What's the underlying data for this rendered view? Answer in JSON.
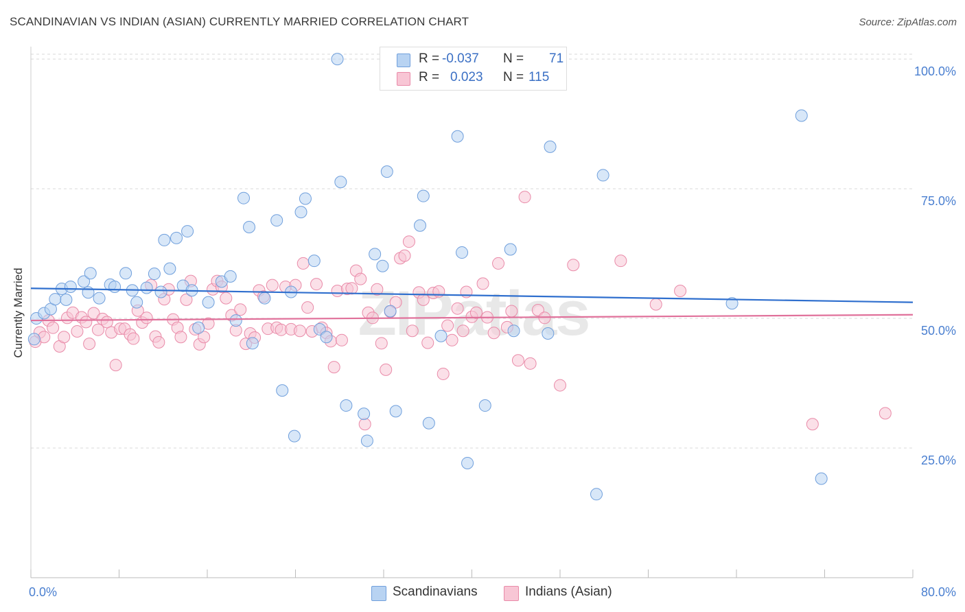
{
  "title": "SCANDINAVIAN VS INDIAN (ASIAN) CURRENTLY MARRIED CORRELATION CHART",
  "source": "Source: ZipAtlas.com",
  "watermark": "ZIPatlas",
  "colors": {
    "blue_fill": "#b8d3f2",
    "blue_stroke": "#6f9fdc",
    "blue_line": "#2f6fce",
    "pink_fill": "#f8c6d5",
    "pink_stroke": "#e98aa8",
    "pink_line": "#e0709a",
    "grid": "#d9d9d9",
    "axis_text": "#4a7fd0"
  },
  "legend": {
    "rows": [
      {
        "r_label": "R =",
        "r_value": "-0.037",
        "n_label": "N =",
        "n_value": "71"
      },
      {
        "r_label": "R =",
        "r_value": "0.023",
        "n_label": "N =",
        "n_value": "115"
      }
    ]
  },
  "bottom_legend": {
    "items": [
      "Scandinavians",
      "Indians (Asian)"
    ]
  },
  "chart_data": {
    "type": "scatter",
    "title": "SCANDINAVIAN VS INDIAN (ASIAN) CURRENTLY MARRIED CORRELATION CHART",
    "xlabel": "",
    "ylabel": "Currently Married",
    "xlim": [
      0,
      80
    ],
    "ylim": [
      0,
      102
    ],
    "x_tick_labels": [
      "0.0%",
      "80.0%"
    ],
    "y_ticks": [
      25,
      50,
      75,
      100
    ],
    "y_tick_labels": [
      "25.0%",
      "50.0%",
      "75.0%",
      "100.0%"
    ],
    "grid": "horizontal dashed",
    "legend_position": "top-center",
    "series": [
      {
        "name": "Scandinavians",
        "color": "blue",
        "trend": {
          "x": [
            0,
            80
          ],
          "y": [
            55.8,
            53.1
          ]
        },
        "points": [
          [
            0.3,
            46
          ],
          [
            0.5,
            50
          ],
          [
            1.2,
            51
          ],
          [
            1.8,
            51.8
          ],
          [
            2.2,
            53.7
          ],
          [
            2.8,
            55.7
          ],
          [
            3.2,
            53.6
          ],
          [
            3.6,
            56.1
          ],
          [
            4.8,
            57.1
          ],
          [
            5.4,
            58.7
          ],
          [
            6.2,
            53.9
          ],
          [
            7.2,
            56.5
          ],
          [
            7.6,
            56.1
          ],
          [
            8.6,
            58.7
          ],
          [
            9.2,
            55.4
          ],
          [
            9.6,
            53.1
          ],
          [
            10.5,
            55.9
          ],
          [
            11.2,
            58.6
          ],
          [
            11.8,
            55.1
          ],
          [
            12.1,
            65.1
          ],
          [
            12.6,
            59.6
          ],
          [
            13.2,
            65.5
          ],
          [
            13.8,
            56.3
          ],
          [
            14.2,
            66.8
          ],
          [
            14.6,
            55.4
          ],
          [
            15.2,
            48.2
          ],
          [
            16.1,
            53.1
          ],
          [
            17.3,
            57.1
          ],
          [
            18.1,
            58.1
          ],
          [
            18.6,
            49.6
          ],
          [
            19.3,
            73.2
          ],
          [
            19.8,
            67.6
          ],
          [
            20.1,
            45.2
          ],
          [
            21.2,
            53.9
          ],
          [
            22.3,
            68.9
          ],
          [
            22.8,
            36.1
          ],
          [
            23.6,
            55.1
          ],
          [
            23.9,
            27.3
          ],
          [
            24.5,
            70.5
          ],
          [
            24.9,
            73.1
          ],
          [
            25.7,
            61.1
          ],
          [
            26.2,
            47.9
          ],
          [
            26.8,
            46.4
          ],
          [
            27.8,
            100
          ],
          [
            28.1,
            76.3
          ],
          [
            28.6,
            33.2
          ],
          [
            30.2,
            31.6
          ],
          [
            30.5,
            26.4
          ],
          [
            31.2,
            62.4
          ],
          [
            31.9,
            60.1
          ],
          [
            32.3,
            78.3
          ],
          [
            32.6,
            51.4
          ],
          [
            33.1,
            32.1
          ],
          [
            35.3,
            67.9
          ],
          [
            35.6,
            73.6
          ],
          [
            36.1,
            29.8
          ],
          [
            37.2,
            46.6
          ],
          [
            38.7,
            85.1
          ],
          [
            39.1,
            62.7
          ],
          [
            39.6,
            22.1
          ],
          [
            41.2,
            33.2
          ],
          [
            43.5,
            63.3
          ],
          [
            43.8,
            47.6
          ],
          [
            46.9,
            47.1
          ],
          [
            47.1,
            83.1
          ],
          [
            51.3,
            16.1
          ],
          [
            51.9,
            77.6
          ],
          [
            63.6,
            52.9
          ],
          [
            69.9,
            89.1
          ],
          [
            71.7,
            19.1
          ],
          [
            5.2,
            55.0
          ]
        ]
      },
      {
        "name": "Indians (Asian)",
        "color": "pink",
        "trend": {
          "x": [
            0,
            80
          ],
          "y": [
            49.6,
            50.7
          ]
        },
        "points": [
          [
            0.4,
            45.5
          ],
          [
            0.8,
            47.3
          ],
          [
            1.2,
            46.4
          ],
          [
            1.6,
            49.6
          ],
          [
            2.0,
            48.2
          ],
          [
            2.6,
            44.6
          ],
          [
            3.0,
            46.4
          ],
          [
            3.3,
            50.1
          ],
          [
            3.8,
            51.1
          ],
          [
            4.2,
            47.5
          ],
          [
            4.6,
            50.2
          ],
          [
            5.0,
            49.3
          ],
          [
            5.3,
            45.1
          ],
          [
            5.7,
            51.0
          ],
          [
            6.1,
            47.8
          ],
          [
            6.5,
            49.9
          ],
          [
            6.9,
            49.3
          ],
          [
            7.3,
            47.3
          ],
          [
            7.7,
            41.0
          ],
          [
            8.1,
            48.0
          ],
          [
            8.5,
            48.0
          ],
          [
            9.0,
            46.9
          ],
          [
            9.3,
            46.1
          ],
          [
            9.7,
            51.5
          ],
          [
            10.1,
            49.2
          ],
          [
            10.5,
            50.1
          ],
          [
            10.9,
            56.4
          ],
          [
            11.3,
            46.5
          ],
          [
            11.6,
            45.4
          ],
          [
            12.1,
            53.7
          ],
          [
            12.5,
            55.6
          ],
          [
            12.9,
            49.8
          ],
          [
            13.3,
            48.2
          ],
          [
            13.6,
            46.4
          ],
          [
            14.1,
            53.6
          ],
          [
            14.5,
            57.2
          ],
          [
            14.9,
            47.9
          ],
          [
            15.3,
            45.0
          ],
          [
            15.7,
            46.4
          ],
          [
            16.1,
            49.0
          ],
          [
            16.5,
            55.6
          ],
          [
            16.9,
            57.2
          ],
          [
            17.3,
            56.1
          ],
          [
            17.7,
            53.9
          ],
          [
            18.2,
            50.6
          ],
          [
            18.6,
            47.7
          ],
          [
            19.0,
            51.7
          ],
          [
            19.5,
            45.1
          ],
          [
            19.9,
            47.1
          ],
          [
            20.3,
            46.3
          ],
          [
            20.7,
            55.4
          ],
          [
            21.1,
            54.2
          ],
          [
            21.5,
            48.0
          ],
          [
            21.9,
            56.4
          ],
          [
            22.3,
            48.2
          ],
          [
            22.7,
            47.8
          ],
          [
            23.1,
            56.1
          ],
          [
            23.6,
            47.9
          ],
          [
            24.0,
            56.4
          ],
          [
            24.4,
            47.6
          ],
          [
            24.7,
            60.6
          ],
          [
            25.1,
            52.1
          ],
          [
            25.5,
            47.5
          ],
          [
            25.9,
            56.6
          ],
          [
            26.4,
            48.2
          ],
          [
            26.8,
            47.2
          ],
          [
            27.2,
            45.6
          ],
          [
            27.5,
            40.6
          ],
          [
            27.8,
            55.3
          ],
          [
            28.2,
            45.8
          ],
          [
            28.7,
            55.7
          ],
          [
            29.1,
            55.8
          ],
          [
            29.5,
            59.2
          ],
          [
            29.9,
            57.6
          ],
          [
            30.3,
            29.6
          ],
          [
            30.6,
            51.1
          ],
          [
            31.0,
            50.1
          ],
          [
            31.4,
            55.6
          ],
          [
            31.8,
            45.2
          ],
          [
            32.2,
            40.1
          ],
          [
            32.6,
            51.3
          ],
          [
            33.1,
            53.1
          ],
          [
            33.5,
            61.6
          ],
          [
            33.9,
            62.1
          ],
          [
            34.3,
            64.8
          ],
          [
            34.6,
            47.6
          ],
          [
            35.2,
            55.0
          ],
          [
            35.6,
            53.6
          ],
          [
            36.0,
            45.3
          ],
          [
            36.5,
            54.9
          ],
          [
            37.0,
            55.2
          ],
          [
            37.4,
            39.3
          ],
          [
            37.8,
            48.6
          ],
          [
            38.2,
            45.8
          ],
          [
            38.7,
            51.9
          ],
          [
            39.2,
            47.6
          ],
          [
            39.5,
            55.1
          ],
          [
            40.0,
            50.3
          ],
          [
            40.4,
            51.1
          ],
          [
            41.0,
            56.7
          ],
          [
            41.4,
            50.2
          ],
          [
            42.0,
            47.2
          ],
          [
            42.4,
            60.6
          ],
          [
            43.2,
            48.3
          ],
          [
            43.6,
            51.4
          ],
          [
            44.2,
            41.9
          ],
          [
            44.8,
            73.4
          ],
          [
            45.3,
            41.3
          ],
          [
            46.0,
            51.6
          ],
          [
            46.6,
            50.1
          ],
          [
            48.0,
            37.1
          ],
          [
            49.2,
            60.3
          ],
          [
            53.5,
            61.1
          ],
          [
            56.7,
            52.7
          ],
          [
            58.9,
            55.3
          ],
          [
            70.9,
            29.6
          ],
          [
            77.5,
            31.7
          ]
        ]
      }
    ]
  }
}
